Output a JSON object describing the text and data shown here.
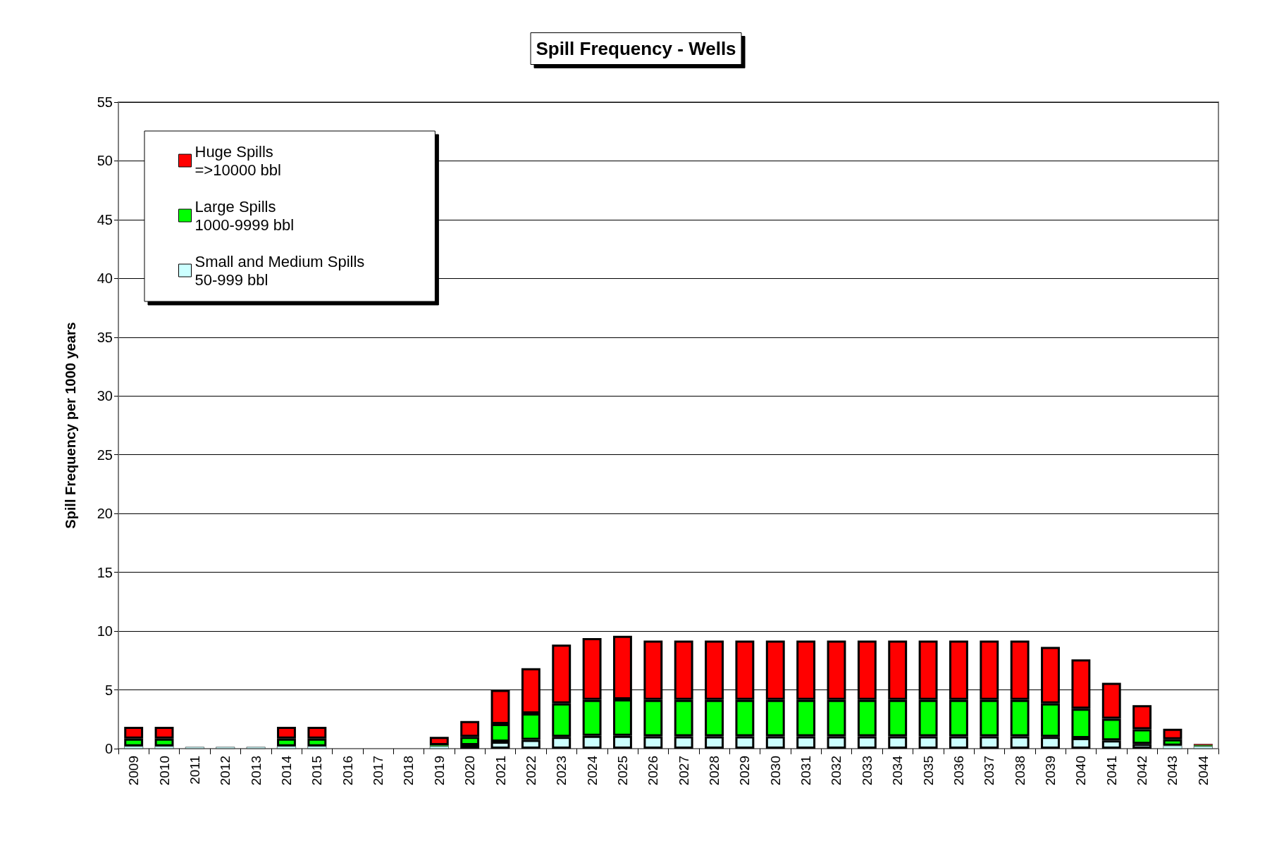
{
  "chart_data": {
    "type": "bar",
    "title": "Spill Frequency - Wells",
    "ylabel": "Spill Frequency per 1000 years",
    "categories": [
      "2009",
      "2010",
      "2011",
      "2012",
      "2013",
      "2014",
      "2015",
      "2016",
      "2017",
      "2018",
      "2019",
      "2020",
      "2021",
      "2022",
      "2023",
      "2024",
      "2025",
      "2026",
      "2027",
      "2028",
      "2029",
      "2030",
      "2031",
      "2032",
      "2033",
      "2034",
      "2035",
      "2036",
      "2037",
      "2038",
      "2039",
      "2040",
      "2041",
      "2042",
      "2043",
      "2044"
    ],
    "stacked": true,
    "series": [
      {
        "name": "Small and Medium Spills\n50-999 bbl",
        "color": "#ccffff",
        "values": [
          0.2,
          0.2,
          0.15,
          0.15,
          0.15,
          0.2,
          0.2,
          0,
          0,
          0,
          0.2,
          0.3,
          0.6,
          0.75,
          1.0,
          1.1,
          1.1,
          1.05,
          1.05,
          1.05,
          1.05,
          1.05,
          1.05,
          1.05,
          1.05,
          1.05,
          1.05,
          1.05,
          1.05,
          1.05,
          1.0,
          0.9,
          0.7,
          0.4,
          0.25,
          0.2
        ]
      },
      {
        "name": "Large Spills\n1000-9999 bbl",
        "color": "#00ff00",
        "values": [
          0.65,
          0.65,
          0,
          0,
          0,
          0.65,
          0.65,
          0,
          0,
          0,
          0.1,
          0.7,
          1.5,
          2.25,
          2.85,
          3.05,
          3.1,
          3.1,
          3.1,
          3.1,
          3.1,
          3.1,
          3.1,
          3.1,
          3.1,
          3.1,
          3.1,
          3.1,
          3.1,
          3.1,
          2.85,
          2.5,
          1.85,
          1.25,
          0.55,
          0.1
        ]
      },
      {
        "name": "Huge Spills\n=>10000 bbl",
        "color": "#ff0000",
        "values": [
          1.0,
          1.0,
          0,
          0,
          0,
          1.0,
          1.0,
          0,
          0,
          0,
          0.7,
          1.35,
          2.9,
          3.85,
          5.0,
          5.25,
          5.4,
          5.05,
          5.05,
          5.05,
          5.05,
          5.05,
          5.05,
          5.05,
          5.05,
          5.05,
          5.05,
          5.05,
          5.05,
          5.05,
          4.8,
          4.2,
          3.05,
          2.05,
          0.9,
          0.1
        ]
      }
    ],
    "ylim": [
      0,
      55
    ],
    "yticks": [
      0,
      5,
      10,
      15,
      20,
      25,
      30,
      35,
      40,
      45,
      50,
      55
    ],
    "grid": "y",
    "legend": "top left"
  }
}
